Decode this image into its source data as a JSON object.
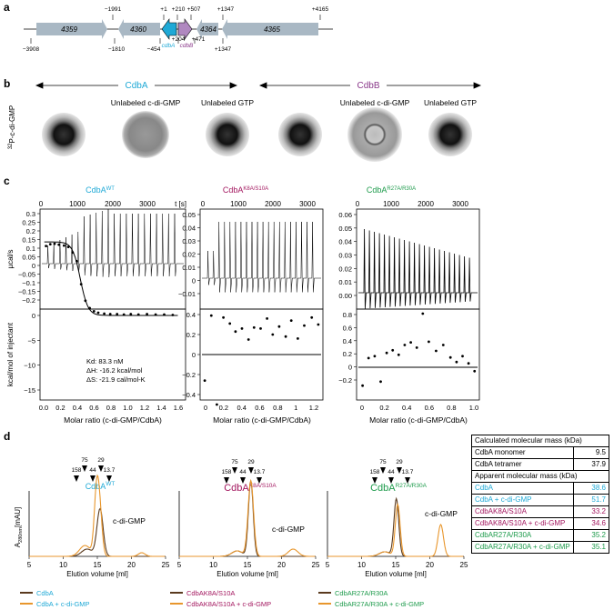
{
  "panels": {
    "a": "a",
    "b": "b",
    "c": "c",
    "d": "d"
  },
  "colors": {
    "cdba": "#1fa9d6",
    "cdbb": "#8b3a8b",
    "magenta": "#a3175f",
    "green": "#1e9b4c",
    "dark": "#5a3a1e",
    "orange": "#e8962c",
    "gene": "#a9b8c4"
  },
  "panel_a": {
    "genes": [
      {
        "name": "4359"
      },
      {
        "name": "4360"
      },
      {
        "name": "cdbA"
      },
      {
        "name": "cdbB"
      },
      {
        "name": "4364"
      },
      {
        "name": "4365"
      }
    ],
    "top_coords": [
      "−1991",
      "+1",
      "+210",
      "+507",
      "+1347",
      "+4165"
    ],
    "bottom_coords": [
      "−3908",
      "−1810",
      "−454",
      "+204",
      "+471",
      "+1347"
    ]
  },
  "panel_b": {
    "ylabel": "32P-c-di-GMP",
    "ylabel_sup": "32",
    "ylabel_rest": "P-c-di-GMP",
    "group_cdba": "CdbA",
    "group_cdbb": "CdbB",
    "spot_labels": [
      "",
      "Unlabeled c-di-GMP",
      "Unlabeled GTP",
      "",
      "Unlabeled c-di-GMP",
      "Unlabeled GTP"
    ]
  },
  "panel_c": {
    "titles": [
      {
        "base": "CdbA",
        "sup": "WT"
      },
      {
        "base": "CdbA",
        "sup": "K8A/S10A"
      },
      {
        "base": "CdbA",
        "sup": "R27A/R30A"
      }
    ],
    "time_ticks": [
      "0",
      "1000",
      "2000",
      "3000"
    ],
    "time_unit": "t [s]",
    "ylabel_top": "µcal/s",
    "ylabel_bottom": "kcal/mol of injectant",
    "xlabel": "Molar ratio (c-di-GMP/CdbA)",
    "y1_top": [
      "0.3",
      "0.25",
      "0.2",
      "0.15",
      "0.1",
      "0.05",
      "0",
      "−0.05",
      "−0.1",
      "−0.15",
      "−0.2"
    ],
    "y1_bot": [
      "0",
      "−5",
      "−10",
      "−15"
    ],
    "x1": [
      "0.0",
      "0.2",
      "0.4",
      "0.6",
      "0.8",
      "1.0",
      "1.2",
      "1.4",
      "1.6"
    ],
    "y2_top": [
      "0.05",
      "0.04",
      "0.03",
      "0.02",
      "0.01",
      "0",
      "−0.01"
    ],
    "y2_bot": [
      "0.4",
      "0.2",
      "0",
      "−0.2",
      "−0.4"
    ],
    "x2": [
      "0",
      "0.2",
      "0.4",
      "0.6",
      "0.8",
      "1",
      "1.2"
    ],
    "y3_top": [
      "0.06",
      "0.05",
      "0.04",
      "0.03",
      "0.02",
      "0.01",
      "0.00"
    ],
    "y3_bot": [
      "0.8",
      "0.6",
      "0.4",
      "0.2",
      "0",
      "−0.2"
    ],
    "x3": [
      "0",
      "0.2",
      "0.4",
      "0.6",
      "0.8",
      "1.0"
    ],
    "fit_kd": "Kd: 83.3 nM",
    "fit_dh": "ΔH: -16.2 kcal/mol",
    "fit_ds": "ΔS: -21.9 cal/mol-K"
  },
  "panel_d": {
    "ylabel": "A280nm[mAU]",
    "xlabel": "Elution volume [ml]",
    "x_ticks": [
      "5",
      "10",
      "15",
      "20",
      "25"
    ],
    "markers_top": [
      "75",
      "29"
    ],
    "markers_bottom": [
      "158",
      "44",
      "13.7"
    ],
    "titles": [
      {
        "base": "CdbA",
        "sup": "WT"
      },
      {
        "base": "CdbA",
        "sup": "K8A/S10A"
      },
      {
        "base": "CdbA",
        "sup": "R27A/R30A"
      }
    ],
    "peak_label": "c-di-GMP",
    "legends": [
      {
        "l1": "CdbA",
        "l2": "CdbA + c-di-GMP"
      },
      {
        "l1": "CdbAK8A/S10A",
        "l2": "CdbAK8A/S10A + c-di-GMP"
      },
      {
        "l1": "CdbAR27A/R30A",
        "l2": "CdbAR27A/R30A + c-di-GMP"
      }
    ]
  },
  "table": {
    "head1": "Calculated molecular mass (kDa)",
    "rows1": [
      {
        "label": "CdbA monomer",
        "value": "9.5"
      },
      {
        "label": "CdbA tetramer",
        "value": "37.9"
      }
    ],
    "head2": "Apparent molecular mass (kDa)",
    "rows2": [
      {
        "label": "CdbA",
        "value": "38.6"
      },
      {
        "label": "CdbA + c-di-GMP",
        "value": "51.7"
      },
      {
        "label": "CdbAK8A/S10A",
        "value": "33.2"
      },
      {
        "label": "CdbAK8A/S10A + c-di-GMP",
        "value": "34.6"
      },
      {
        "label": "CdbAR27A/R30A",
        "value": "35.2"
      },
      {
        "label": "CdbAR27A/R30A + c-di-GMP",
        "value": "35.1"
      }
    ]
  }
}
